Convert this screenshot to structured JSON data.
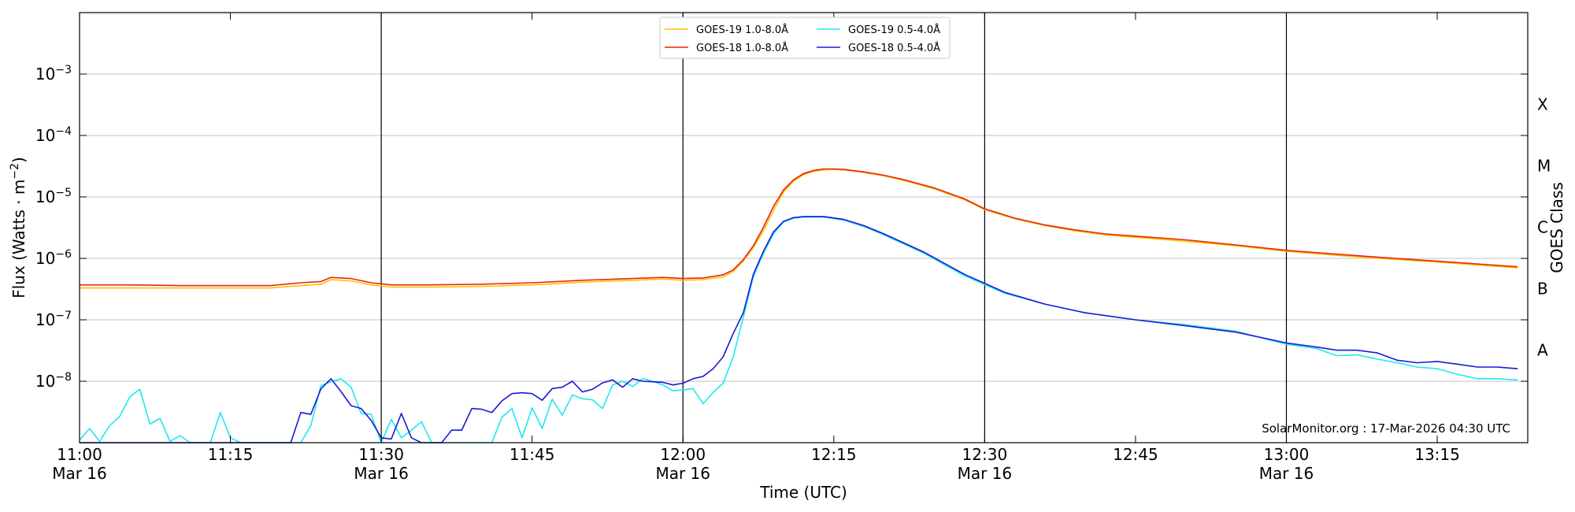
{
  "chart_data": {
    "type": "line",
    "xlabel": "Time (UTC)",
    "ylabel": "Flux (Watts · m",
    "ylabel_sup": "−2",
    "ylabel_close": ")",
    "y2label": "GOES Class",
    "credit": "SolarMonitor.org : 17-Mar-2026 04:30 UTC",
    "yscale": "log",
    "ylim": [
      1e-09,
      0.01
    ],
    "xlim": [
      "11:00",
      "13:24"
    ],
    "grid": true,
    "legend_position": "top-center",
    "x_ticks": [
      {
        "time": "11:00",
        "label": "11:00",
        "sublabel": "Mar 16",
        "vline": false
      },
      {
        "time": "11:15",
        "label": "11:15",
        "sublabel": "",
        "vline": false
      },
      {
        "time": "11:30",
        "label": "11:30",
        "sublabel": "Mar 16",
        "vline": true
      },
      {
        "time": "11:45",
        "label": "11:45",
        "sublabel": "",
        "vline": false
      },
      {
        "time": "12:00",
        "label": "12:00",
        "sublabel": "Mar 16",
        "vline": true
      },
      {
        "time": "12:15",
        "label": "12:15",
        "sublabel": "",
        "vline": false
      },
      {
        "time": "12:30",
        "label": "12:30",
        "sublabel": "Mar 16",
        "vline": true
      },
      {
        "time": "12:45",
        "label": "12:45",
        "sublabel": "",
        "vline": false
      },
      {
        "time": "13:00",
        "label": "13:00",
        "sublabel": "Mar 16",
        "vline": true
      },
      {
        "time": "13:15",
        "label": "13:15",
        "sublabel": "",
        "vline": false
      }
    ],
    "y_ticks": [
      {
        "value": 1e-08,
        "mantissa": "10",
        "exp": "−8"
      },
      {
        "value": 1e-07,
        "mantissa": "10",
        "exp": "−7"
      },
      {
        "value": 1e-06,
        "mantissa": "10",
        "exp": "−6"
      },
      {
        "value": 1e-05,
        "mantissa": "10",
        "exp": "−5"
      },
      {
        "value": 0.0001,
        "mantissa": "10",
        "exp": "−4"
      },
      {
        "value": 0.001,
        "mantissa": "10",
        "exp": "−3"
      }
    ],
    "classes": [
      {
        "label": "A",
        "value": 1e-08
      },
      {
        "label": "B",
        "value": 1e-07
      },
      {
        "label": "C",
        "value": 1e-06
      },
      {
        "label": "M",
        "value": 1e-05
      },
      {
        "label": "X",
        "value": 0.0001
      }
    ],
    "series": [
      {
        "name": "GOES-19 1.0-8.0Å",
        "color": "#ffc000",
        "x": [
          "11:00",
          "11:05",
          "11:10",
          "11:15",
          "11:19",
          "11:22",
          "11:24",
          "11:25",
          "11:27",
          "11:29",
          "11:31",
          "11:35",
          "11:40",
          "11:45",
          "11:50",
          "11:55",
          "11:58",
          "12:00",
          "12:02",
          "12:04",
          "12:05",
          "12:06",
          "12:07",
          "12:08",
          "12:09",
          "12:10",
          "12:11",
          "12:12",
          "12:13",
          "12:14",
          "12:15",
          "12:16",
          "12:18",
          "12:20",
          "12:22",
          "12:25",
          "12:28",
          "12:30",
          "12:33",
          "12:36",
          "12:39",
          "12:42",
          "12:45",
          "12:50",
          "12:55",
          "13:00",
          "13:05",
          "13:10",
          "13:15",
          "13:20",
          "13:23"
        ],
        "y": [
          3.3e-07,
          3.3e-07,
          3.3e-07,
          3.3e-07,
          3.3e-07,
          3.6e-07,
          3.8e-07,
          4.5e-07,
          4.3e-07,
          3.7e-07,
          3.4e-07,
          3.4e-07,
          3.5e-07,
          3.7e-07,
          4.1e-07,
          4.4e-07,
          4.6e-07,
          4.4e-07,
          4.5e-07,
          5e-07,
          6.1e-07,
          9e-07,
          1.5e-06,
          2.8e-06,
          6e-06,
          1.2e-05,
          1.8e-05,
          2.3e-05,
          2.6e-05,
          2.75e-05,
          2.8e-05,
          2.75e-05,
          2.5e-05,
          2.2e-05,
          1.85e-05,
          1.35e-05,
          9e-06,
          6.2e-06,
          4.4e-06,
          3.4e-06,
          2.8e-06,
          2.4e-06,
          2.2e-06,
          1.9e-06,
          1.6e-06,
          1.3e-06,
          1.12e-06,
          9.8e-07,
          8.7e-07,
          7.6e-07,
          7e-07
        ]
      },
      {
        "name": "GOES-18 1.0-8.0Å",
        "color": "#e8260a",
        "x": [
          "11:00",
          "11:05",
          "11:10",
          "11:15",
          "11:19",
          "11:22",
          "11:24",
          "11:25",
          "11:27",
          "11:29",
          "11:31",
          "11:35",
          "11:40",
          "11:45",
          "11:50",
          "11:55",
          "11:58",
          "12:00",
          "12:02",
          "12:04",
          "12:05",
          "12:06",
          "12:07",
          "12:08",
          "12:09",
          "12:10",
          "12:11",
          "12:12",
          "12:13",
          "12:14",
          "12:15",
          "12:16",
          "12:18",
          "12:20",
          "12:22",
          "12:25",
          "12:28",
          "12:30",
          "12:33",
          "12:36",
          "12:39",
          "12:42",
          "12:45",
          "12:50",
          "12:55",
          "13:00",
          "13:05",
          "13:10",
          "13:15",
          "13:20",
          "13:23"
        ],
        "y": [
          3.7e-07,
          3.7e-07,
          3.6e-07,
          3.6e-07,
          3.6e-07,
          4e-07,
          4.2e-07,
          4.9e-07,
          4.7e-07,
          4e-07,
          3.7e-07,
          3.7e-07,
          3.8e-07,
          4e-07,
          4.4e-07,
          4.7e-07,
          4.9e-07,
          4.7e-07,
          4.8e-07,
          5.4e-07,
          6.5e-07,
          9.5e-07,
          1.6e-06,
          3.2e-06,
          7e-06,
          1.3e-05,
          1.9e-05,
          2.4e-05,
          2.7e-05,
          2.85e-05,
          2.85e-05,
          2.8e-05,
          2.55e-05,
          2.25e-05,
          1.9e-05,
          1.4e-05,
          9.3e-06,
          6.4e-06,
          4.5e-06,
          3.5e-06,
          2.9e-06,
          2.5e-06,
          2.3e-06,
          2e-06,
          1.65e-06,
          1.35e-06,
          1.17e-06,
          1.02e-06,
          9e-07,
          7.9e-07,
          7.3e-07
        ]
      },
      {
        "name": "GOES-19 0.5-4.0Å",
        "color": "#1ee8f0",
        "x": [
          "11:00",
          "11:01",
          "11:02",
          "11:03",
          "11:04",
          "11:05",
          "11:06",
          "11:07",
          "11:08",
          "11:09",
          "11:10",
          "11:11",
          "11:12",
          "11:13",
          "11:14",
          "11:15",
          "11:16",
          "11:17",
          "11:18",
          "11:19",
          "11:20",
          "11:21",
          "11:22",
          "11:23",
          "11:24",
          "11:25",
          "11:26",
          "11:27",
          "11:28",
          "11:29",
          "11:30",
          "11:31",
          "11:32",
          "11:33",
          "11:34",
          "11:35",
          "11:36",
          "11:37",
          "11:38",
          "11:39",
          "11:40",
          "11:41",
          "11:42",
          "11:43",
          "11:44",
          "11:45",
          "11:46",
          "11:47",
          "11:48",
          "11:49",
          "11:50",
          "11:51",
          "11:52",
          "11:53",
          "11:54",
          "11:55",
          "11:56",
          "11:57",
          "11:58",
          "11:59",
          "12:00",
          "12:01",
          "12:02",
          "12:03",
          "12:04",
          "12:05",
          "12:06",
          "12:07",
          "12:08",
          "12:09",
          "12:10",
          "12:11",
          "12:12",
          "12:14",
          "12:16",
          "12:18",
          "12:20",
          "12:24",
          "12:28",
          "12:32",
          "12:36",
          "12:40",
          "12:45",
          "12:50",
          "12:55",
          "13:00",
          "13:03",
          "13:05",
          "13:07",
          "13:09",
          "13:11",
          "13:13",
          "13:15",
          "13:17",
          "13:19",
          "13:21",
          "13:23"
        ],
        "y": [
          1.1e-09,
          1.7e-09,
          1.05e-09,
          1.9e-09,
          2.7e-09,
          5.6e-09,
          7.4e-09,
          2e-09,
          2.5e-09,
          1.05e-09,
          1.3e-09,
          1e-09,
          1e-09,
          1e-09,
          3.1e-09,
          1.2e-09,
          1e-09,
          1e-09,
          1e-09,
          1e-09,
          1e-09,
          1e-09,
          1e-09,
          1.9e-09,
          8.5e-09,
          9.8e-09,
          1.1e-08,
          8e-09,
          3e-09,
          2.9e-09,
          1e-09,
          2.4e-09,
          1.2e-09,
          1.6e-09,
          2.2e-09,
          1e-09,
          1e-09,
          1e-09,
          1e-09,
          1e-09,
          1e-09,
          1e-09,
          2.6e-09,
          3.6e-09,
          1.2e-09,
          3.7e-09,
          1.7e-09,
          5.1e-09,
          2.8e-09,
          6e-09,
          5.2e-09,
          5e-09,
          3.6e-09,
          8.7e-09,
          1e-08,
          8.2e-09,
          1.1e-08,
          1e-08,
          8.7e-09,
          7e-09,
          7.2e-09,
          7.6e-09,
          4.3e-09,
          6.6e-09,
          9.3e-09,
          2.5e-08,
          1.1e-07,
          5e-07,
          1.2e-06,
          2.5e-06,
          3.9e-06,
          4.5e-06,
          4.7e-06,
          4.7e-06,
          4.2e-06,
          3.3e-06,
          2.4e-06,
          1.2e-06,
          5.2e-07,
          2.7e-07,
          1.8e-07,
          1.3e-07,
          1e-07,
          8.3e-08,
          6.5e-08,
          4e-08,
          3.4e-08,
          2.6e-08,
          2.7e-08,
          2.3e-08,
          2e-08,
          1.7e-08,
          1.6e-08,
          1.3e-08,
          1.1e-08,
          1.1e-08,
          1.05e-08
        ]
      },
      {
        "name": "GOES-18 0.5-4.0Å",
        "color": "#1a1ad8",
        "x": [
          "11:00",
          "11:05",
          "11:10",
          "11:15",
          "11:20",
          "11:21",
          "11:22",
          "11:23",
          "11:24",
          "11:25",
          "11:26",
          "11:27",
          "11:28",
          "11:29",
          "11:30",
          "11:31",
          "11:32",
          "11:33",
          "11:34",
          "11:35",
          "11:36",
          "11:37",
          "11:38",
          "11:39",
          "11:40",
          "11:41",
          "11:42",
          "11:43",
          "11:44",
          "11:45",
          "11:46",
          "11:47",
          "11:48",
          "11:49",
          "11:50",
          "11:51",
          "11:52",
          "11:53",
          "11:54",
          "11:55",
          "11:56",
          "11:57",
          "11:58",
          "11:59",
          "12:00",
          "12:01",
          "12:02",
          "12:03",
          "12:04",
          "12:05",
          "12:06",
          "12:07",
          "12:08",
          "12:09",
          "12:10",
          "12:11",
          "12:12",
          "12:14",
          "12:16",
          "12:18",
          "12:20",
          "12:24",
          "12:28",
          "12:32",
          "12:36",
          "12:40",
          "12:45",
          "12:50",
          "12:55",
          "13:00",
          "13:03",
          "13:05",
          "13:07",
          "13:09",
          "13:11",
          "13:13",
          "13:15",
          "13:17",
          "13:19",
          "13:21",
          "13:23"
        ],
        "y": [
          1e-09,
          1e-09,
          1e-09,
          1e-09,
          1e-09,
          1e-09,
          3.1e-09,
          2.9e-09,
          7.5e-09,
          1.1e-08,
          6.8e-09,
          4e-09,
          3.6e-09,
          2.3e-09,
          1.2e-09,
          1.15e-09,
          3e-09,
          1.2e-09,
          1e-09,
          1e-09,
          1e-09,
          1.6e-09,
          1.6e-09,
          3.6e-09,
          3.5e-09,
          3.1e-09,
          4.8e-09,
          6.3e-09,
          6.5e-09,
          6.3e-09,
          4.9e-09,
          7.6e-09,
          8e-09,
          1e-08,
          6.7e-09,
          7.4e-09,
          9.4e-09,
          1.05e-08,
          8e-09,
          1.1e-08,
          1e-08,
          9.8e-09,
          9.6e-09,
          8.7e-09,
          9.3e-09,
          1.1e-08,
          1.2e-08,
          1.6e-08,
          2.5e-08,
          6e-08,
          1.3e-07,
          5.5e-07,
          1.3e-06,
          2.7e-06,
          4e-06,
          4.6e-06,
          4.8e-06,
          4.8e-06,
          4.3e-06,
          3.4e-06,
          2.5e-06,
          1.25e-06,
          5.5e-07,
          2.8e-07,
          1.8e-07,
          1.3e-07,
          1e-07,
          8e-08,
          6.3e-08,
          4.2e-08,
          3.6e-08,
          3.2e-08,
          3.2e-08,
          2.9e-08,
          2.2e-08,
          2e-08,
          2.1e-08,
          1.9e-08,
          1.7e-08,
          1.7e-08,
          1.6e-08
        ]
      }
    ]
  }
}
